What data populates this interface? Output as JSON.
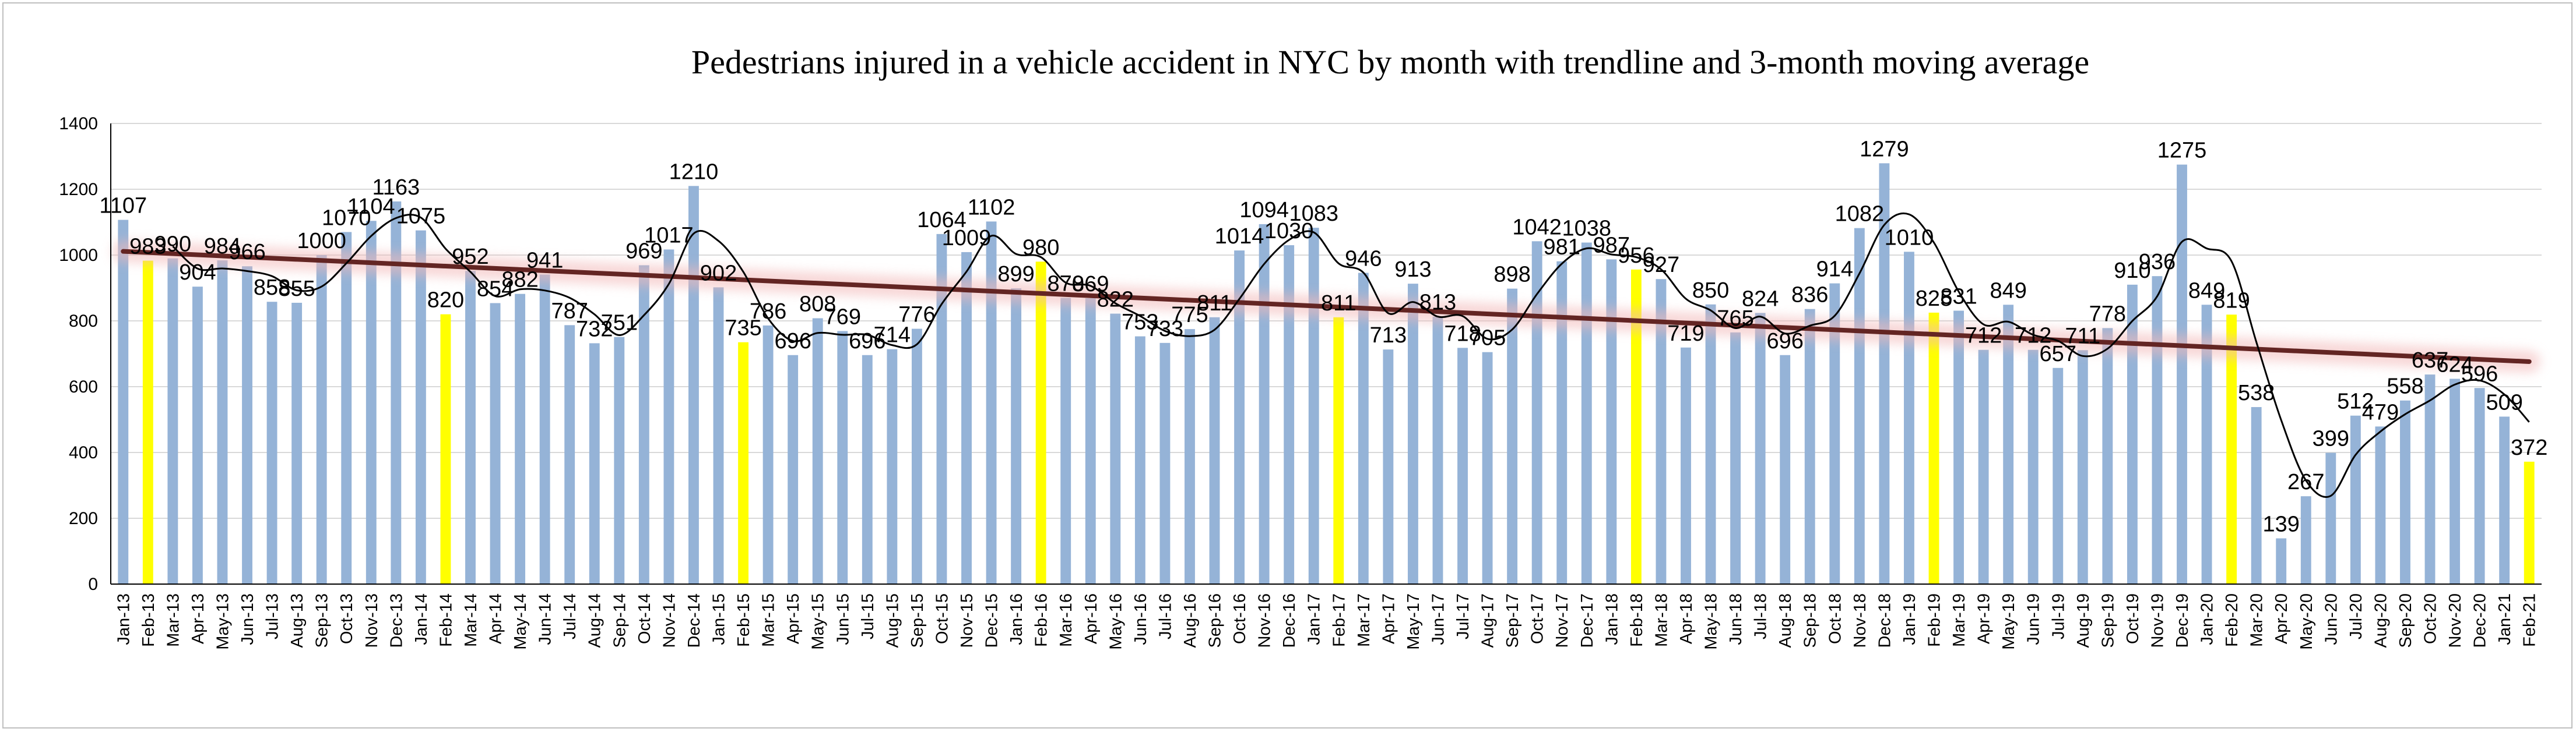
{
  "chart_data": {
    "type": "bar",
    "title": "Pedestrians injured in a vehicle accident in NYC by month with trendline and 3-month moving average",
    "xlabel": "",
    "ylabel": "",
    "ylim": [
      0,
      1400
    ],
    "yticks": [
      0,
      200,
      400,
      600,
      800,
      1000,
      1200,
      1400
    ],
    "grid": true,
    "legend": "none",
    "colors": {
      "bar": "#95b3d7",
      "highlight_bar": "#ffff00",
      "trendline": "#632523",
      "trend_glow": "#f2b8b8",
      "moving_average": "#000000",
      "grid": "#d9d9d9",
      "axis": "#000000"
    },
    "categories": [
      "Jan-13",
      "Feb-13",
      "Mar-13",
      "Apr-13",
      "May-13",
      "Jun-13",
      "Jul-13",
      "Aug-13",
      "Sep-13",
      "Oct-13",
      "Nov-13",
      "Dec-13",
      "Jan-14",
      "Feb-14",
      "Mar-14",
      "Apr-14",
      "May-14",
      "Jun-14",
      "Jul-14",
      "Aug-14",
      "Sep-14",
      "Oct-14",
      "Nov-14",
      "Dec-14",
      "Jan-15",
      "Feb-15",
      "Mar-15",
      "Apr-15",
      "May-15",
      "Jun-15",
      "Jul-15",
      "Aug-15",
      "Sep-15",
      "Oct-15",
      "Nov-15",
      "Dec-15",
      "Jan-16",
      "Feb-16",
      "Mar-16",
      "Apr-16",
      "May-16",
      "Jun-16",
      "Jul-16",
      "Aug-16",
      "Sep-16",
      "Oct-16",
      "Nov-16",
      "Dec-16",
      "Jan-17",
      "Feb-17",
      "Mar-17",
      "Apr-17",
      "May-17",
      "Jun-17",
      "Jul-17",
      "Aug-17",
      "Sep-17",
      "Oct-17",
      "Nov-17",
      "Dec-17",
      "Jan-18",
      "Feb-18",
      "Mar-18",
      "Apr-18",
      "May-18",
      "Jun-18",
      "Jul-18",
      "Aug-18",
      "Sep-18",
      "Oct-18",
      "Nov-18",
      "Dec-18",
      "Jan-19",
      "Feb-19",
      "Mar-19",
      "Apr-19",
      "May-19",
      "Jun-19",
      "Jul-19",
      "Aug-19",
      "Sep-19",
      "Oct-19",
      "Nov-19",
      "Dec-19",
      "Jan-20",
      "Feb-20",
      "Mar-20",
      "Apr-20",
      "May-20",
      "Jun-20",
      "Jul-20",
      "Aug-20",
      "Sep-20",
      "Oct-20",
      "Nov-20",
      "Dec-20",
      "Jan-21",
      "Feb-21"
    ],
    "values": [
      1107,
      983,
      990,
      904,
      984,
      966,
      858,
      855,
      1000,
      1070,
      1104,
      1163,
      1075,
      820,
      952,
      854,
      882,
      941,
      787,
      732,
      751,
      969,
      1017,
      1210,
      902,
      735,
      786,
      696,
      808,
      769,
      696,
      714,
      776,
      1064,
      1009,
      1102,
      899,
      980,
      870,
      869,
      822,
      753,
      733,
      775,
      811,
      1014,
      1094,
      1030,
      1083,
      811,
      946,
      713,
      913,
      813,
      718,
      705,
      898,
      1042,
      981,
      1038,
      987,
      956,
      927,
      719,
      850,
      765,
      824,
      696,
      836,
      914,
      1082,
      1279,
      1010,
      825,
      831,
      712,
      849,
      712,
      657,
      711,
      778,
      910,
      936,
      1275,
      849,
      819,
      538,
      139,
      267,
      399,
      512,
      479,
      558,
      637,
      624,
      596,
      509,
      372
    ],
    "highlighted": [
      "Feb-13",
      "Feb-14",
      "Feb-15",
      "Feb-16",
      "Feb-17",
      "Feb-18",
      "Feb-19",
      "Feb-20",
      "Feb-21"
    ],
    "data_labels": [
      "1107",
      "983",
      "990",
      "904",
      "984",
      "966",
      "858",
      "855",
      "1000",
      "1070",
      "1104",
      "1163",
      "1075",
      "820",
      "952",
      "854",
      "882",
      "941",
      "787",
      "732",
      "751",
      "969",
      "1017",
      "1210",
      "902",
      "735",
      "786",
      "696",
      "808",
      "769",
      "696",
      "714",
      "776",
      "1064",
      "1009",
      "1102",
      "899",
      "980",
      "870",
      "869",
      "822",
      "753",
      "733",
      "775",
      "811",
      "1014",
      "1094",
      "1030",
      "1083",
      "811",
      "946",
      "713",
      "913",
      "813",
      "718",
      "705",
      "898",
      "1042",
      "981",
      "1038",
      "987",
      "956",
      "927",
      "719",
      "850",
      "765",
      "824",
      "696",
      "836",
      "914",
      "1082",
      "1279",
      "1010",
      "825",
      "831",
      "712",
      "849",
      "712",
      "657",
      "711",
      "778",
      "910",
      "936",
      "1275",
      "849",
      "819",
      "538",
      "139",
      "267",
      "399",
      "512",
      "479",
      "558",
      "637",
      "624",
      "596",
      "509",
      "372"
    ],
    "overlays": [
      {
        "type": "linear-trendline"
      },
      {
        "type": "3-month-moving-average"
      }
    ]
  }
}
